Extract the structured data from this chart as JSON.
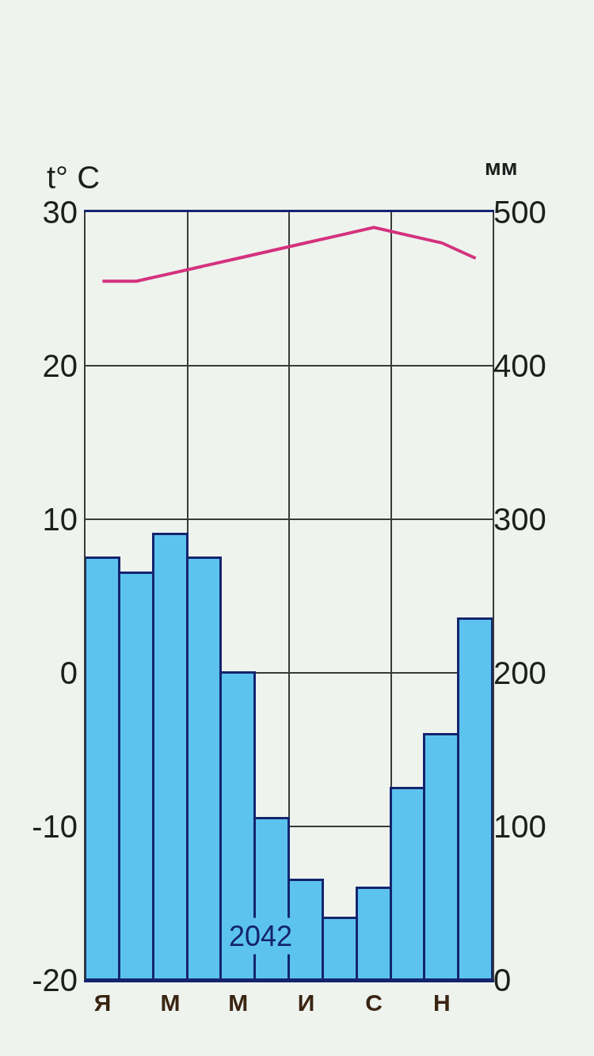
{
  "chart_data": {
    "type": "bar",
    "categories": [
      "Я",
      null,
      "М",
      null,
      "М",
      null,
      "И",
      null,
      "С",
      null,
      "Н",
      null
    ],
    "series": [
      {
        "axis": "y2",
        "color": "#5cc3ef",
        "values": [
          275,
          265,
          290,
          275,
          200,
          105,
          65,
          40,
          60,
          125,
          160,
          235
        ]
      },
      {
        "type": "line",
        "color": "#d4327e",
        "values": [
          25.5,
          25.5,
          26,
          26.5,
          27,
          27.5,
          28,
          28.5,
          29,
          28.5,
          28,
          27
        ]
      }
    ],
    "ylabel": "t° C",
    "y2label": "мм",
    "ylim": [
      -20,
      30
    ],
    "yticks": [
      -20,
      -10,
      0,
      10,
      20,
      30
    ],
    "y2lim": [
      0,
      500
    ],
    "y2ticks": [
      0,
      100,
      200,
      300,
      400,
      500
    ],
    "annotations": [
      "2042"
    ],
    "grid": true
  }
}
